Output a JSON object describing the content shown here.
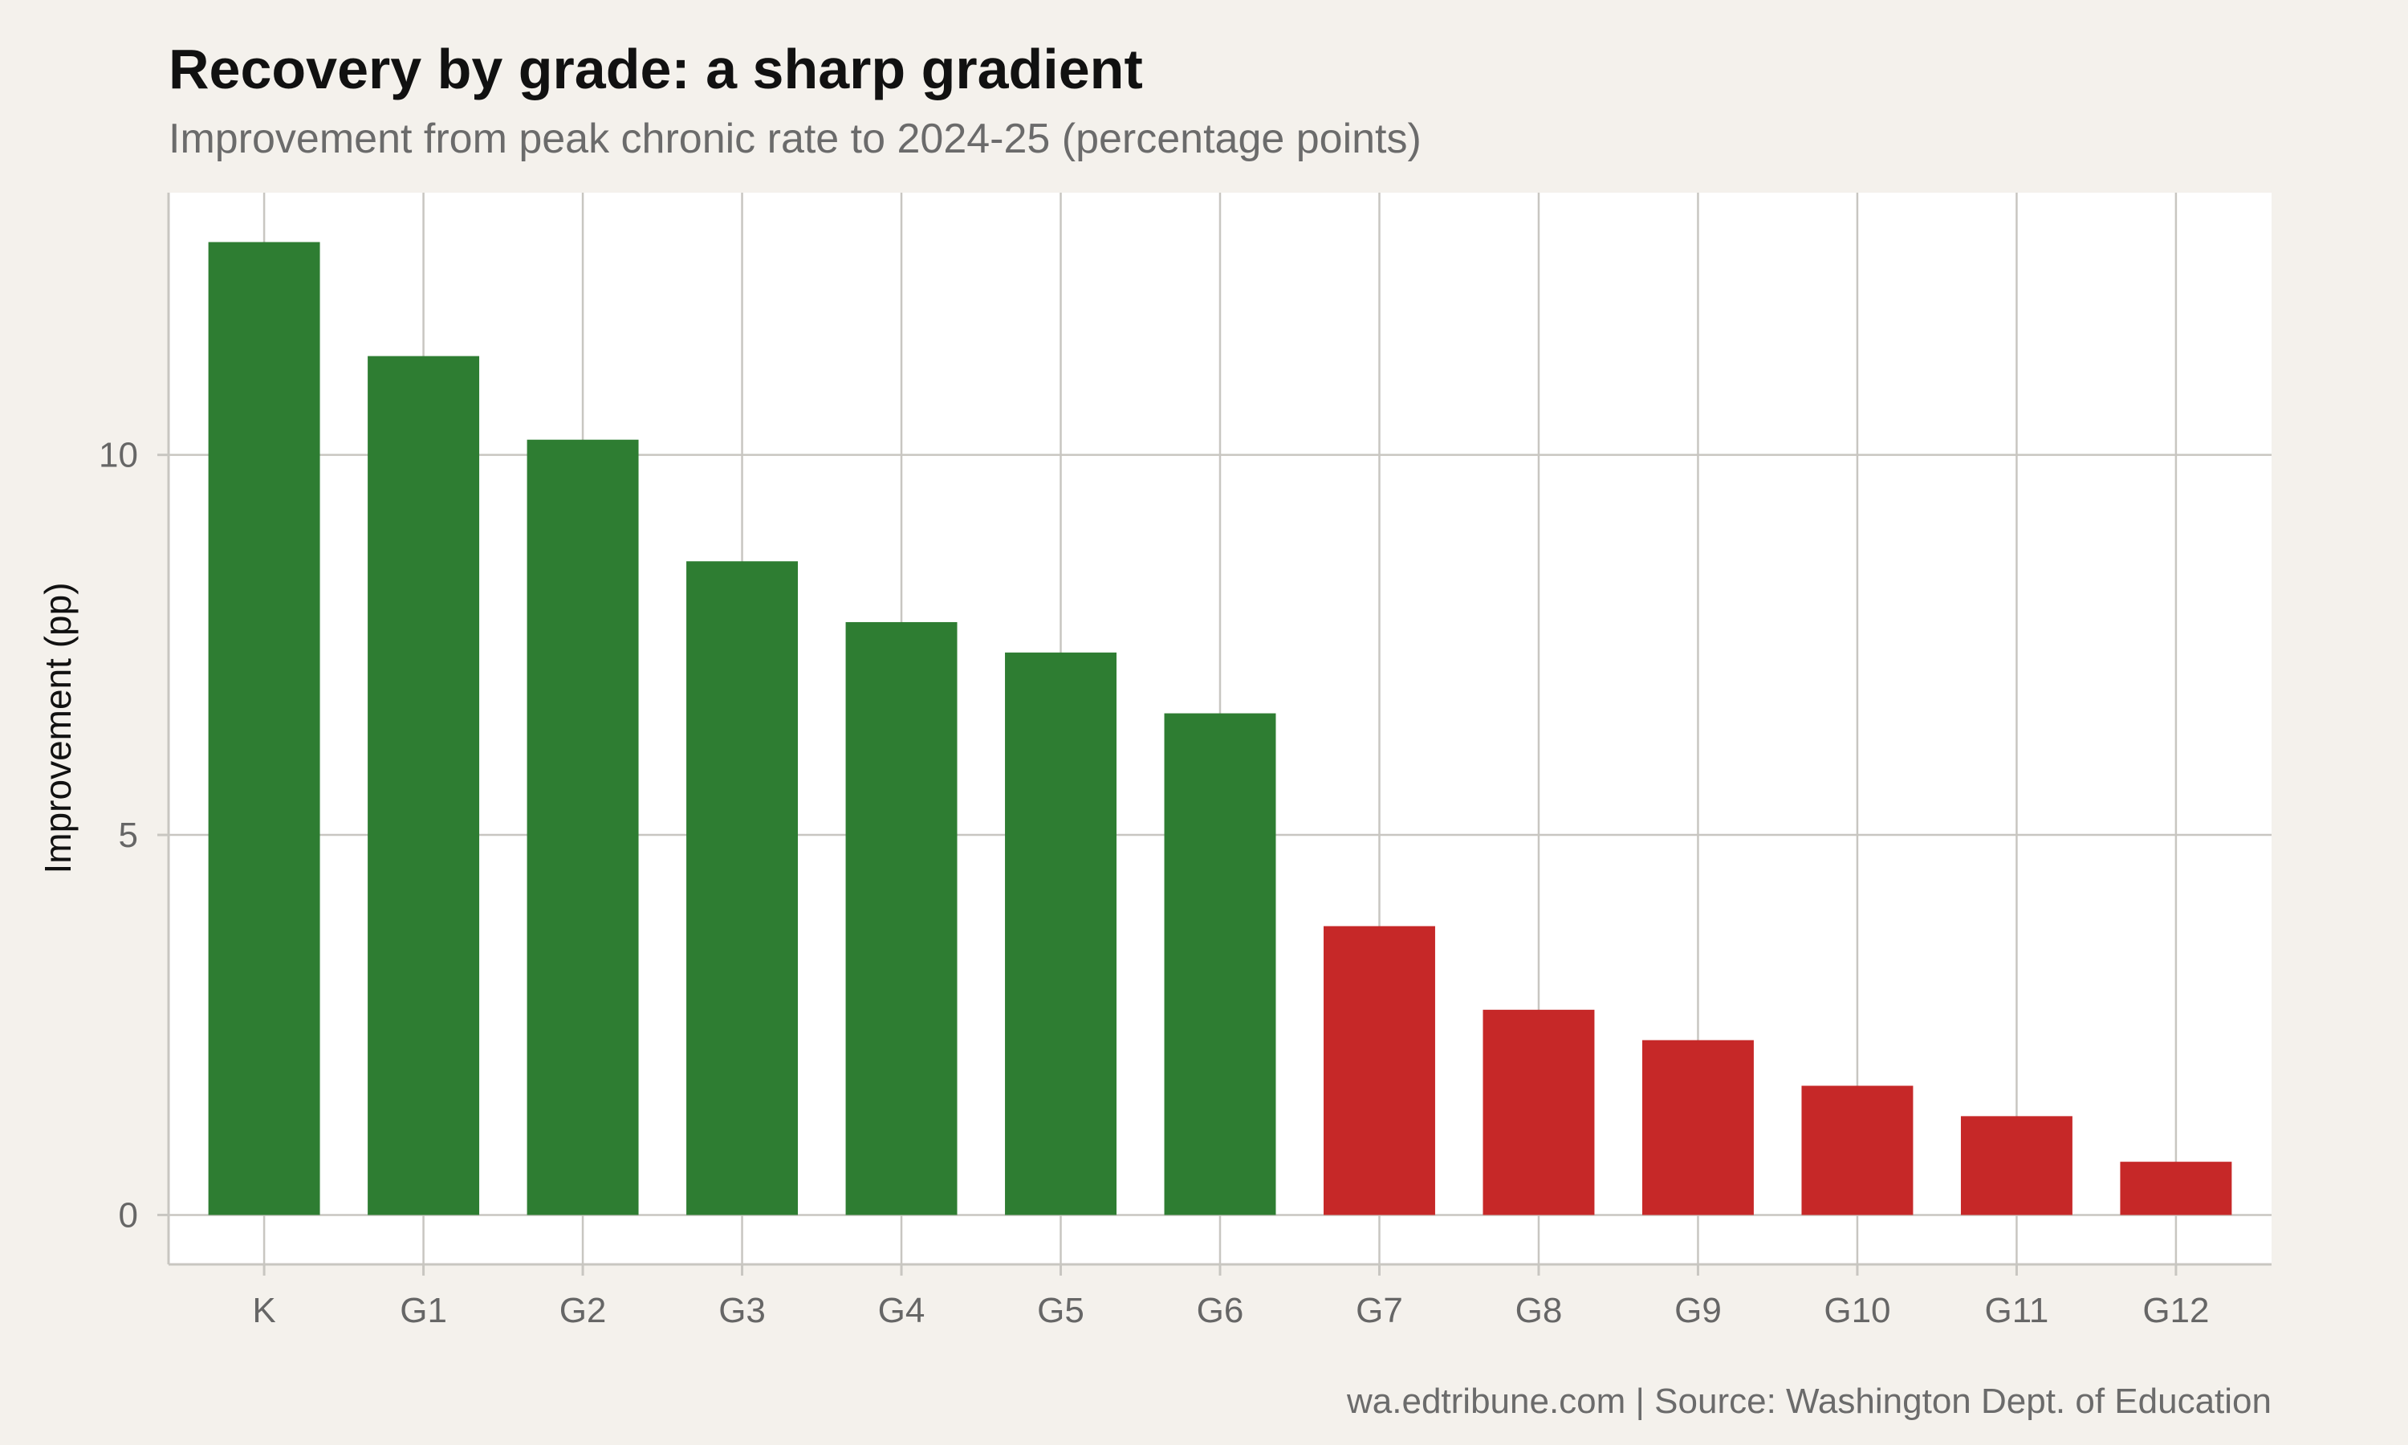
{
  "chart_data": {
    "type": "bar",
    "title": "Recovery by grade: a sharp gradient",
    "subtitle": "Improvement from peak chronic rate to 2024-25 (percentage points)",
    "xlabel": "",
    "ylabel": "Improvement (pp)",
    "categories": [
      "K",
      "G1",
      "G2",
      "G3",
      "G4",
      "G5",
      "G6",
      "G7",
      "G8",
      "G9",
      "G10",
      "G11",
      "G12"
    ],
    "values": [
      12.8,
      11.3,
      10.2,
      8.6,
      7.8,
      7.4,
      6.6,
      3.8,
      2.7,
      2.3,
      1.7,
      1.3,
      0.7
    ],
    "bar_colors": [
      "#2e7d32",
      "#2e7d32",
      "#2e7d32",
      "#2e7d32",
      "#2e7d32",
      "#2e7d32",
      "#2e7d32",
      "#c62828",
      "#c62828",
      "#c62828",
      "#c62828",
      "#c62828",
      "#c62828"
    ],
    "ylim": [
      -0.65,
      13.45
    ],
    "yticks": [
      0,
      5,
      10
    ],
    "ytick_labels": [
      "0",
      "5",
      "10"
    ],
    "grid": true,
    "legend": "none"
  },
  "caption": "wa.edtribune.com | Source: Washington Dept. of Education",
  "colors": {
    "background": "#f4f1ec",
    "panel": "#ffffff",
    "positive": "#2e7d32",
    "negative": "#c62828"
  }
}
